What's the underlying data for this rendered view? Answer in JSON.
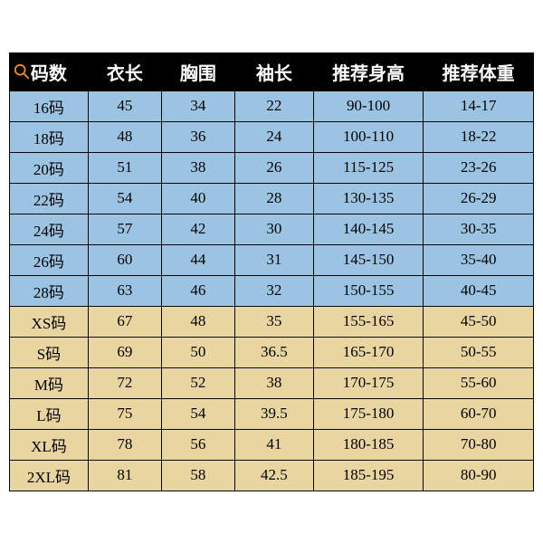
{
  "table": {
    "type": "table",
    "columns": [
      "码数",
      "衣长",
      "胸围",
      "袖长",
      "推荐身高",
      "推荐体重"
    ],
    "column_widths_pct": [
      15,
      14,
      14,
      15,
      21,
      21
    ],
    "header_bg": "#000000",
    "header_color": "#ffffff",
    "border_color": "#000000",
    "row_group_colors": {
      "blue": "#9bc4e2",
      "tan": "#e8d5a0"
    },
    "header_fontsize": 20,
    "cell_fontsize": 17,
    "font_family": "SimSun",
    "rows": [
      {
        "group": "blue",
        "cells": [
          "16码",
          "45",
          "34",
          "22",
          "90-100",
          "14-17"
        ]
      },
      {
        "group": "blue",
        "cells": [
          "18码",
          "48",
          "36",
          "24",
          "100-110",
          "18-22"
        ]
      },
      {
        "group": "blue",
        "cells": [
          "20码",
          "51",
          "38",
          "26",
          "115-125",
          "23-26"
        ]
      },
      {
        "group": "blue",
        "cells": [
          "22码",
          "54",
          "40",
          "28",
          "130-135",
          "26-29"
        ]
      },
      {
        "group": "blue",
        "cells": [
          "24码",
          "57",
          "42",
          "30",
          "140-145",
          "30-35"
        ]
      },
      {
        "group": "blue",
        "cells": [
          "26码",
          "60",
          "44",
          "31",
          "145-150",
          "35-40"
        ]
      },
      {
        "group": "blue",
        "cells": [
          "28码",
          "63",
          "46",
          "32",
          "150-155",
          "40-45"
        ]
      },
      {
        "group": "tan",
        "cells": [
          "XS码",
          "67",
          "48",
          "35",
          "155-165",
          "45-50"
        ]
      },
      {
        "group": "tan",
        "cells": [
          "S码",
          "69",
          "50",
          "36.5",
          "165-170",
          "50-55"
        ]
      },
      {
        "group": "tan",
        "cells": [
          "M码",
          "72",
          "52",
          "38",
          "170-175",
          "55-60"
        ]
      },
      {
        "group": "tan",
        "cells": [
          "L码",
          "75",
          "54",
          "39.5",
          "175-180",
          "60-70"
        ]
      },
      {
        "group": "tan",
        "cells": [
          "XL码",
          "78",
          "56",
          "41",
          "180-185",
          "70-80"
        ]
      },
      {
        "group": "tan",
        "cells": [
          "2XL码",
          "81",
          "58",
          "42.5",
          "185-195",
          "80-90"
        ]
      }
    ],
    "search_icon_color": "#ff8c00"
  }
}
